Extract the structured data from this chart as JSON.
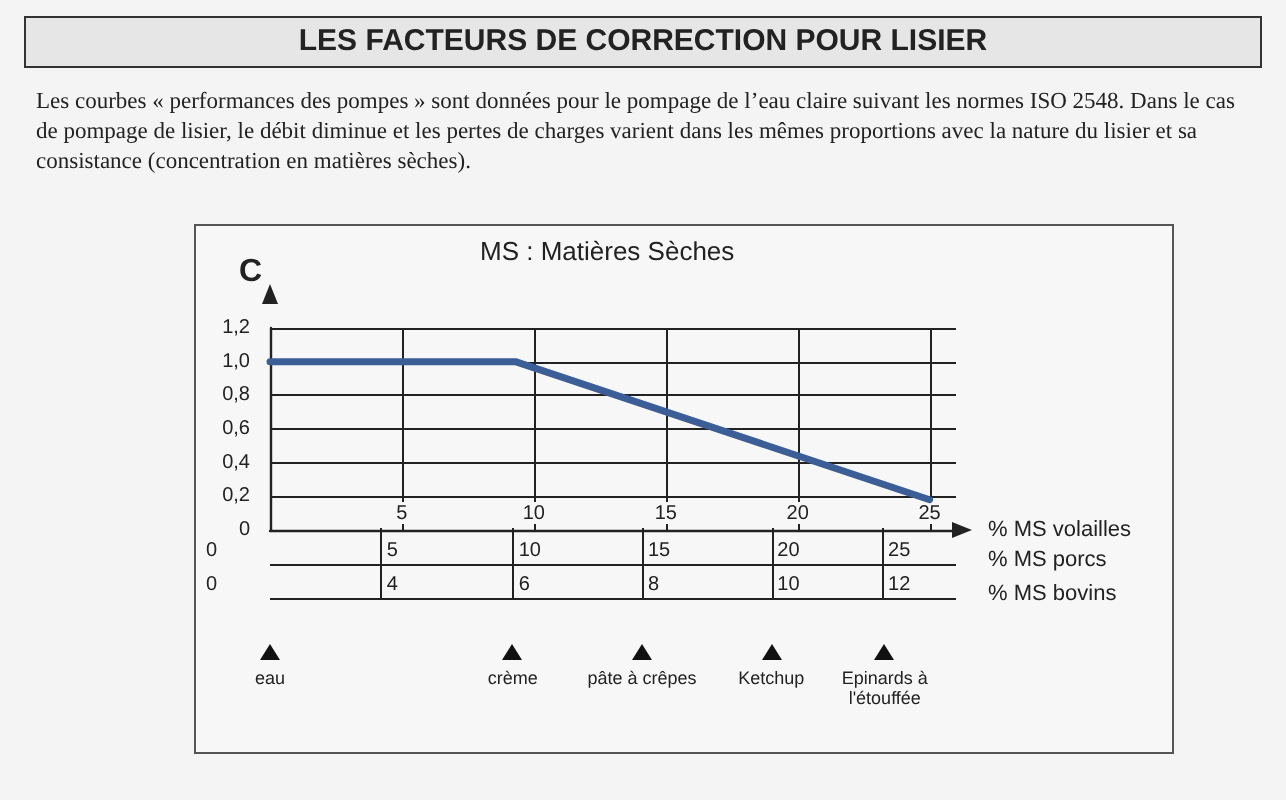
{
  "chart_data": {
    "type": "line",
    "title": "LES FACTEURS DE CORRECTION POUR LISIER",
    "subtitle": "Les courbes « performances des pompes » sont données pour le pompage de l’eau claire suivant les normes ISO 2548. Dans le cas de pompage de lisier, le débit diminue et les pertes de charges varient dans les mêmes proportions avec la nature du lisier et sa consistance (concentration en matières sèches).",
    "ylabel": "C",
    "xlabel": "% MS volailles",
    "annotations": [
      "MS  : Matières Sèches",
      "0",
      "5",
      "10",
      "15",
      "20",
      "25",
      "% MS porcs",
      "0",
      "4",
      "6",
      "8",
      "10",
      "12",
      "% MS bovins",
      "eau",
      "crème",
      "pâte à crêpes",
      "Ketchup",
      "Epinards à l'étouffée"
    ],
    "x": [
      0,
      9.3,
      25
    ],
    "series": [
      {
        "color": "#3b5e96",
        "values": [
          1.0,
          1.0,
          0.18
        ]
      }
    ],
    "xlim": [
      0,
      26
    ],
    "xticks": [
      5,
      10,
      15,
      20,
      25
    ],
    "ylim": [
      0,
      1.2
    ],
    "yticks": [
      0,
      {
        "value": 0.2,
        "label": "0,2"
      },
      {
        "value": 0.4,
        "label": "0,4"
      },
      {
        "value": 0.6,
        "label": "0,6"
      },
      {
        "value": 0.8,
        "label": "0,8"
      },
      {
        "value": 1.0,
        "label": "1,0"
      },
      {
        "value": 1.2,
        "label": "1,2"
      }
    ],
    "grid": true,
    "marker": "none",
    "line_style": "solid"
  }
}
